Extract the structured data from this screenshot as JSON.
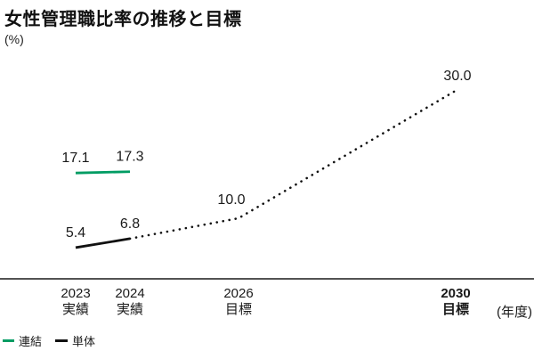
{
  "title": "女性管理職比率の推移と目標",
  "y_unit": "(%)",
  "x_unit": "(年度)",
  "colors": {
    "consolidated_green": "#009C63",
    "standalone_black": "#111111",
    "axis": "#1A1A1A",
    "text": "#1A1A1A",
    "background": "#FFFFFF"
  },
  "legend": {
    "items": [
      {
        "label": "連結",
        "series_index": 0
      },
      {
        "label": "単体",
        "series_index": 1
      }
    ]
  },
  "chart_data": {
    "type": "line",
    "title": "女性管理職比率の推移と目標",
    "ylabel": "(%)",
    "xlabel": "(年度)",
    "grid": false,
    "legend_position": "bottom-left",
    "x_axis": {
      "ticks": [
        {
          "year": 2023,
          "label": "2023",
          "sublabel": "実績",
          "bold": false
        },
        {
          "year": 2024,
          "label": "2024",
          "sublabel": "実績",
          "bold": false
        },
        {
          "year": 2026,
          "label": "2026",
          "sublabel": "目標",
          "bold": false
        },
        {
          "year": 2030,
          "label": "2030",
          "sublabel": "目標",
          "bold": true
        }
      ]
    },
    "series": [
      {
        "name": "連結",
        "color": "#009C63",
        "points": [
          {
            "year": 2023,
            "value": 17.1,
            "label": "17.1"
          },
          {
            "year": 2024,
            "value": 17.3,
            "label": "17.3"
          }
        ],
        "segments": [
          {
            "from": 0,
            "to": 1,
            "style": "solid"
          }
        ]
      },
      {
        "name": "単体",
        "color": "#111111",
        "points": [
          {
            "year": 2023,
            "value": 5.4,
            "label": "5.4"
          },
          {
            "year": 2024,
            "value": 6.8,
            "label": "6.8"
          },
          {
            "year": 2026,
            "value": 10.0,
            "label": "10.0"
          },
          {
            "year": 2030,
            "value": 30.0,
            "label": "30.0"
          }
        ],
        "segments": [
          {
            "from": 0,
            "to": 1,
            "style": "solid"
          },
          {
            "from": 1,
            "to": 3,
            "style": "dotted"
          }
        ]
      }
    ]
  }
}
